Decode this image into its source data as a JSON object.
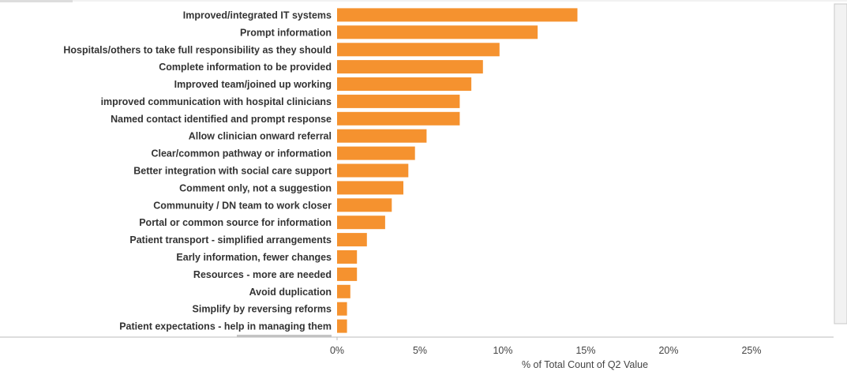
{
  "colors": {
    "bar": "#F5922F",
    "scrollbar_track": "#F2F2F2",
    "scrollbar_border": "#C8C8C8",
    "axis_line": "#BBBBBB"
  },
  "chart_data": {
    "type": "bar",
    "orientation": "horizontal",
    "categories": [
      "Improved/integrated IT systems",
      "Prompt information",
      "Hospitals/others to take full responsibility as they should",
      "Complete information to be provided",
      "Improved team/joined up working",
      "improved communication with hospital clinicians",
      "Named contact identified and prompt response",
      "Allow clinician onward referral",
      "Clear/common pathway or information",
      "Better integration with social care support",
      "Comment only, not a suggestion",
      "Communuity / DN team to work closer",
      "Portal or common source for information",
      "Patient transport - simplified arrangements",
      "Early information, fewer changes",
      "Resources - more are needed",
      "Avoid duplication",
      "Simplify by reversing reforms",
      "Patient expectations - help in managing them"
    ],
    "values": [
      14.5,
      12.1,
      9.8,
      8.8,
      8.1,
      7.4,
      7.4,
      5.4,
      4.7,
      4.3,
      4.0,
      3.3,
      2.9,
      1.8,
      1.2,
      1.2,
      0.8,
      0.6,
      0.6
    ],
    "xlabel": "% of Total Count of Q2 Value",
    "xticks": [
      "0%",
      "5%",
      "10%",
      "15%",
      "20%",
      "25%"
    ],
    "xtick_values": [
      0,
      5,
      10,
      15,
      20,
      25
    ],
    "xlim": [
      0,
      29.5
    ],
    "grid": false,
    "legend": "none"
  }
}
